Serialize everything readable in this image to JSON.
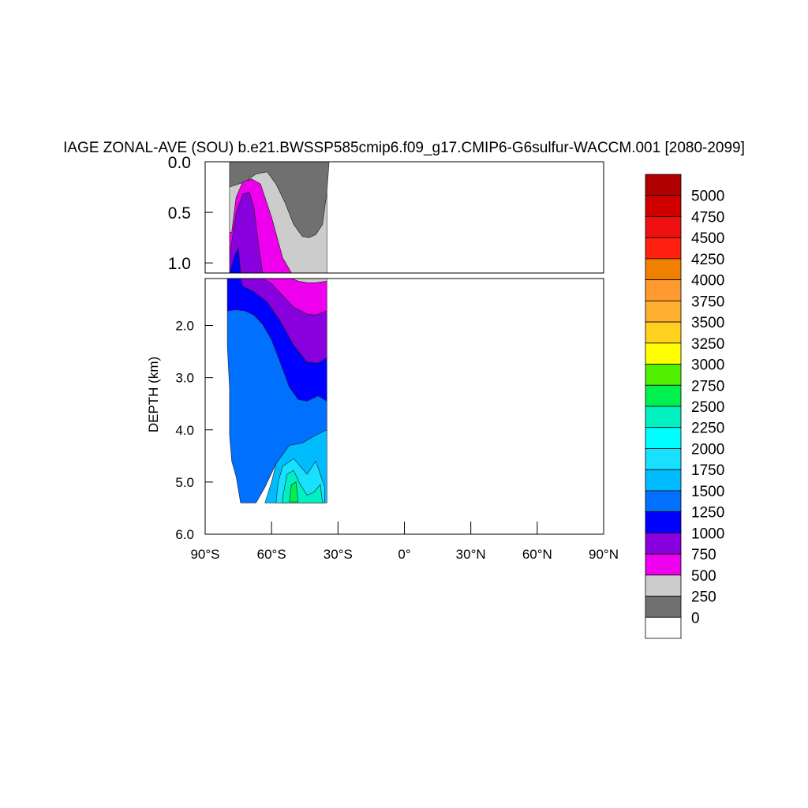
{
  "chart_data": {
    "type": "contour",
    "title": "IAGE ZONAL-AVE (SOU) b.e21.BWSSP585cmip6.f09_g17.CMIP6-G6sulfur-WACCM.001 [2080-2099]",
    "ylabel": "DEPTH (km)",
    "xlabel": "",
    "xlim": [
      -90,
      90
    ],
    "x_tick_labels": [
      "90°S",
      "60°S",
      "30°S",
      "0°",
      "30°N",
      "60°N",
      "90°N"
    ],
    "x_tick_values": [
      -90,
      -60,
      -30,
      0,
      30,
      60,
      90
    ],
    "upper_panel": {
      "ylim": [
        0.0,
        1.1
      ],
      "y_tick_labels": [
        "0.0",
        "0.5",
        "1.0"
      ],
      "y_tick_values": [
        0.0,
        0.5,
        1.0
      ]
    },
    "lower_panel": {
      "ylim": [
        1.1,
        6.0
      ],
      "y_tick_labels": [
        "2.0",
        "3.0",
        "4.0",
        "5.0",
        "6.0"
      ],
      "y_tick_values": [
        2.0,
        3.0,
        4.0,
        5.0,
        6.0
      ]
    },
    "colorbar": {
      "labels": [
        "5000",
        "4750",
        "4500",
        "4250",
        "4000",
        "3750",
        "3500",
        "3250",
        "3000",
        "2750",
        "2500",
        "2250",
        "2000",
        "1750",
        "1500",
        "1250",
        "1000",
        "750",
        "500",
        "250",
        "0"
      ],
      "colors": [
        "#b00000",
        "#d00000",
        "#ee1010",
        "#ff2010",
        "#f08000",
        "#ff9a30",
        "#ffb030",
        "#ffd020",
        "#ffff00",
        "#50f000",
        "#00f050",
        "#00f0c0",
        "#00ffff",
        "#18e0ff",
        "#00bcff",
        "#0070ff",
        "#0000ff",
        "#8800dd",
        "#ee00ee",
        "#cccccc",
        "#707070",
        "#ffffff"
      ]
    },
    "bands": [
      {
        "name": "0-250",
        "color": "#707070",
        "upper": [
          [
            -79,
            0.0
          ],
          [
            -34,
            0.0
          ],
          [
            -35,
            0.3
          ],
          [
            -37,
            0.62
          ],
          [
            -40,
            0.72
          ],
          [
            -43,
            0.75
          ],
          [
            -46,
            0.74
          ],
          [
            -50,
            0.62
          ],
          [
            -54,
            0.4
          ],
          [
            -58,
            0.22
          ],
          [
            -62,
            0.1
          ],
          [
            -67,
            0.12
          ],
          [
            -72,
            0.2
          ],
          [
            -79,
            0.25
          ]
        ],
        "lower": []
      },
      {
        "name": "250-500",
        "color": "#cccccc",
        "upper": [
          [
            -79,
            0.25
          ],
          [
            -72,
            0.2
          ],
          [
            -67,
            0.12
          ],
          [
            -62,
            0.1
          ],
          [
            -58,
            0.22
          ],
          [
            -54,
            0.4
          ],
          [
            -50,
            0.62
          ],
          [
            -46,
            0.74
          ],
          [
            -43,
            0.75
          ],
          [
            -40,
            0.72
          ],
          [
            -37,
            0.62
          ],
          [
            -35,
            0.3
          ],
          [
            -35,
            1.1
          ],
          [
            -51,
            1.1
          ],
          [
            -55,
            0.95
          ],
          [
            -60,
            0.55
          ],
          [
            -65,
            0.22
          ],
          [
            -69,
            0.17
          ],
          [
            -73,
            0.2
          ],
          [
            -76,
            0.35
          ],
          [
            -78,
            0.7
          ],
          [
            -79,
            0.7
          ]
        ],
        "lower": [
          [
            -51,
            1.1
          ],
          [
            -35,
            1.1
          ],
          [
            -35,
            1.15
          ],
          [
            -40,
            1.18
          ],
          [
            -44,
            1.18
          ],
          [
            -48,
            1.15
          ]
        ]
      },
      {
        "name": "500-750",
        "color": "#ee00ee",
        "upper": [
          [
            -79,
            0.7
          ],
          [
            -78,
            0.7
          ],
          [
            -76,
            0.35
          ],
          [
            -73,
            0.2
          ],
          [
            -69,
            0.17
          ],
          [
            -65,
            0.22
          ],
          [
            -60,
            0.55
          ],
          [
            -55,
            0.95
          ],
          [
            -51,
            1.1
          ],
          [
            -64,
            1.1
          ],
          [
            -66,
            0.8
          ],
          [
            -68,
            0.45
          ],
          [
            -70,
            0.3
          ],
          [
            -73,
            0.32
          ],
          [
            -76,
            0.5
          ],
          [
            -78,
            0.8
          ],
          [
            -79,
            0.9
          ]
        ],
        "lower": [
          [
            -64,
            1.1
          ],
          [
            -51,
            1.1
          ],
          [
            -48,
            1.15
          ],
          [
            -44,
            1.18
          ],
          [
            -40,
            1.18
          ],
          [
            -35,
            1.15
          ],
          [
            -35,
            1.72
          ],
          [
            -40,
            1.8
          ],
          [
            -44,
            1.78
          ],
          [
            -50,
            1.65
          ],
          [
            -56,
            1.38
          ],
          [
            -60,
            1.2
          ]
        ]
      },
      {
        "name": "750-1000",
        "color": "#8800dd",
        "upper": [
          [
            -79,
            0.9
          ],
          [
            -78,
            0.8
          ],
          [
            -76,
            0.5
          ],
          [
            -73,
            0.32
          ],
          [
            -70,
            0.3
          ],
          [
            -68,
            0.45
          ],
          [
            -66,
            0.8
          ],
          [
            -64,
            1.1
          ],
          [
            -74,
            1.1
          ],
          [
            -75,
            0.85
          ],
          [
            -77,
            0.95
          ],
          [
            -79,
            1.1
          ]
        ],
        "lower": [
          [
            -74,
            1.1
          ],
          [
            -64,
            1.1
          ],
          [
            -60,
            1.2
          ],
          [
            -56,
            1.38
          ],
          [
            -50,
            1.65
          ],
          [
            -44,
            1.78
          ],
          [
            -40,
            1.8
          ],
          [
            -35,
            1.72
          ],
          [
            -35,
            2.62
          ],
          [
            -39,
            2.72
          ],
          [
            -44,
            2.7
          ],
          [
            -50,
            2.38
          ],
          [
            -56,
            1.92
          ],
          [
            -62,
            1.55
          ],
          [
            -68,
            1.35
          ],
          [
            -73,
            1.25
          ]
        ]
      },
      {
        "name": "1000-1250",
        "color": "#0000ff",
        "upper": [
          [
            -79,
            1.1
          ],
          [
            -77,
            0.95
          ],
          [
            -75,
            0.85
          ],
          [
            -74,
            1.1
          ]
        ],
        "lower": [
          [
            -80,
            1.1
          ],
          [
            -74,
            1.1
          ],
          [
            -73,
            1.25
          ],
          [
            -68,
            1.35
          ],
          [
            -62,
            1.55
          ],
          [
            -56,
            1.92
          ],
          [
            -50,
            2.38
          ],
          [
            -44,
            2.7
          ],
          [
            -39,
            2.72
          ],
          [
            -35,
            2.62
          ],
          [
            -35,
            3.45
          ],
          [
            -39,
            3.35
          ],
          [
            -44,
            3.45
          ],
          [
            -48,
            3.42
          ],
          [
            -52,
            3.18
          ],
          [
            -56,
            2.72
          ],
          [
            -60,
            2.28
          ],
          [
            -64,
            1.98
          ],
          [
            -68,
            1.8
          ],
          [
            -72,
            1.72
          ],
          [
            -76,
            1.7
          ],
          [
            -80,
            1.72
          ]
        ]
      },
      {
        "name": "1250-1500",
        "color": "#0070ff",
        "upper": [],
        "lower": [
          [
            -80,
            1.72
          ],
          [
            -76,
            1.7
          ],
          [
            -72,
            1.72
          ],
          [
            -68,
            1.8
          ],
          [
            -64,
            1.98
          ],
          [
            -60,
            2.28
          ],
          [
            -56,
            2.72
          ],
          [
            -52,
            3.18
          ],
          [
            -48,
            3.42
          ],
          [
            -44,
            3.45
          ],
          [
            -39,
            3.35
          ],
          [
            -35,
            3.45
          ],
          [
            -35,
            4.0
          ],
          [
            -40,
            4.1
          ],
          [
            -46,
            4.25
          ],
          [
            -52,
            4.3
          ],
          [
            -58,
            4.65
          ],
          [
            -63,
            5.1
          ],
          [
            -67,
            5.4
          ],
          [
            -74,
            5.4
          ],
          [
            -76,
            4.9
          ],
          [
            -78,
            4.6
          ],
          [
            -79,
            4.1
          ],
          [
            -79,
            3.2
          ],
          [
            -80,
            2.4
          ]
        ]
      },
      {
        "name": "1500-1750",
        "color": "#00bcff",
        "upper": [],
        "lower": [
          [
            -58,
            4.65
          ],
          [
            -52,
            4.3
          ],
          [
            -46,
            4.25
          ],
          [
            -40,
            4.1
          ],
          [
            -35,
            4.0
          ],
          [
            -35,
            5.4
          ],
          [
            -63,
            5.4
          ],
          [
            -60,
            5.0
          ]
        ]
      },
      {
        "name": "1750-2000",
        "color": "#18e0ff",
        "upper": [],
        "lower": [
          [
            -57,
            5.0
          ],
          [
            -55,
            4.7
          ],
          [
            -50,
            4.55
          ],
          [
            -44,
            4.85
          ],
          [
            -40,
            4.6
          ],
          [
            -38,
            4.85
          ],
          [
            -36,
            5.1
          ],
          [
            -36,
            5.4
          ],
          [
            -58,
            5.4
          ]
        ]
      },
      {
        "name": "2000-2250",
        "color": "#00f0c0",
        "upper": [],
        "lower": [
          [
            -55,
            5.3
          ],
          [
            -53,
            4.85
          ],
          [
            -50,
            4.78
          ],
          [
            -47,
            5.05
          ],
          [
            -44,
            5.25
          ],
          [
            -41,
            5.2
          ],
          [
            -38,
            5.05
          ],
          [
            -37,
            5.4
          ],
          [
            -55,
            5.4
          ]
        ]
      },
      {
        "name": "2250-2500",
        "color": "#00f050",
        "upper": [],
        "lower": [
          [
            -52,
            5.38
          ],
          [
            -51,
            5.05
          ],
          [
            -49,
            5.0
          ],
          [
            -48,
            5.38
          ]
        ]
      }
    ]
  }
}
